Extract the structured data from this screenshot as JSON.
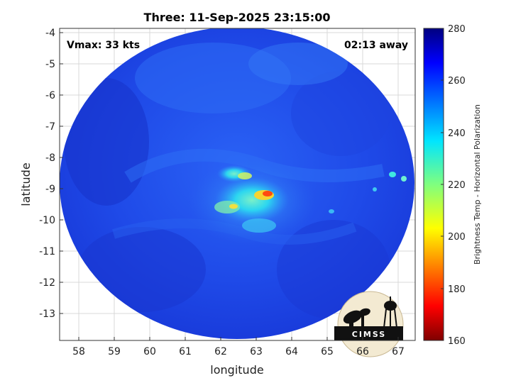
{
  "title": "Three: 11-Sep-2025 23:15:00",
  "annotations": {
    "vmax": "Vmax: 33 kts",
    "away": "02:13 away"
  },
  "xaxis": {
    "label": "longitude",
    "ticks": [
      "58",
      "59",
      "60",
      "61",
      "62",
      "63",
      "64",
      "65",
      "66",
      "67"
    ]
  },
  "yaxis": {
    "label": "latitude",
    "ticks": [
      "-4",
      "-5",
      "-6",
      "-7",
      "-8",
      "-9",
      "-10",
      "-11",
      "-12",
      "-13"
    ]
  },
  "colorbar": {
    "label": "Brightness Temp - Horizontal Polarization",
    "ticks": [
      "280",
      "260",
      "240",
      "220",
      "200",
      "180",
      "160"
    ]
  },
  "logo": {
    "text": "CIMSS"
  },
  "colors": {
    "background_swath": "#1a3fe0",
    "core": "#29d4f0",
    "hot": "#ff3300"
  }
}
